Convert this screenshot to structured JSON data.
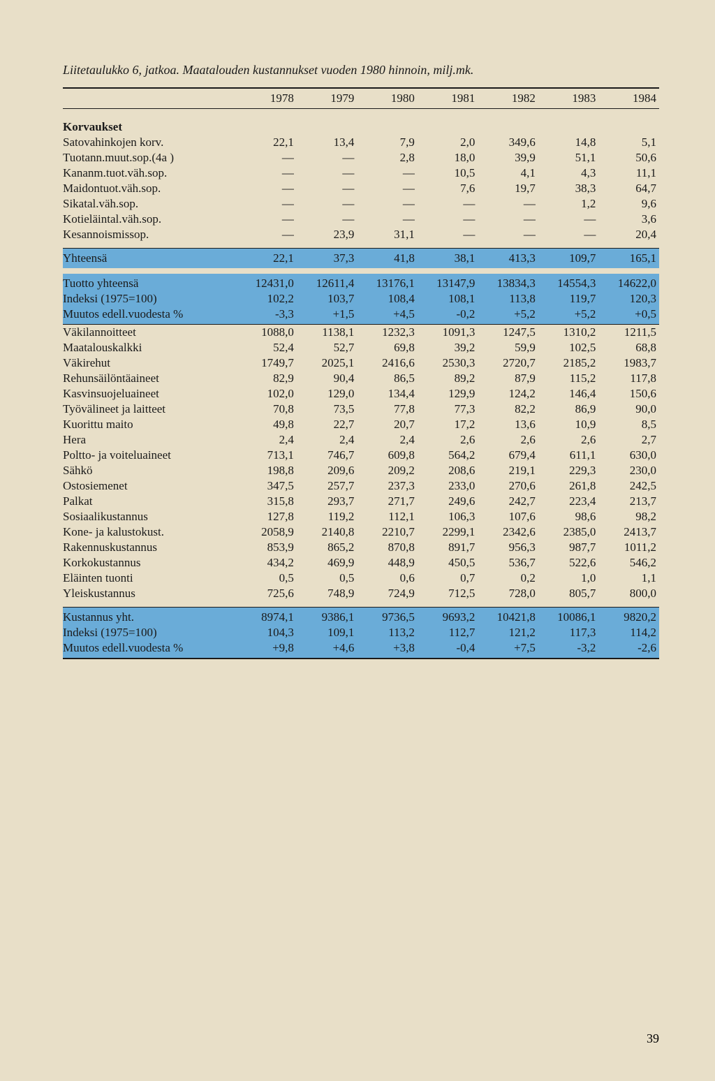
{
  "title": "Liitetaulukko 6, jatkoa. Maatalouden kustannukset vuoden 1980 hinnoin, milj.mk.",
  "years": [
    "1978",
    "1979",
    "1980",
    "1981",
    "1982",
    "1983",
    "1984"
  ],
  "sections": [
    {
      "heading": "Korvaukset",
      "rows": [
        {
          "label": "Satovahinkojen korv.",
          "v": [
            "22,1",
            "13,4",
            "7,9",
            "2,0",
            "349,6",
            "14,8",
            "5,1"
          ]
        },
        {
          "label": "Tuotann.muut.sop.(4a )",
          "v": [
            "—",
            "—",
            "2,8",
            "18,0",
            "39,9",
            "51,1",
            "50,6"
          ]
        },
        {
          "label": "Kananm.tuot.väh.sop.",
          "v": [
            "—",
            "—",
            "—",
            "10,5",
            "4,1",
            "4,3",
            "11,1"
          ]
        },
        {
          "label": "Maidontuot.väh.sop.",
          "v": [
            "—",
            "—",
            "—",
            "7,6",
            "19,7",
            "38,3",
            "64,7"
          ]
        },
        {
          "label": "Sikatal.väh.sop.",
          "v": [
            "—",
            "—",
            "—",
            "—",
            "—",
            "1,2",
            "9,6"
          ]
        },
        {
          "label": "Kotieläintal.väh.sop.",
          "v": [
            "—",
            "—",
            "—",
            "—",
            "—",
            "—",
            "3,6"
          ]
        },
        {
          "label": "Kesannoismissop.",
          "v": [
            "—",
            "23,9",
            "31,1",
            "—",
            "—",
            "—",
            "20,4"
          ]
        }
      ]
    }
  ],
  "hl1": [
    {
      "label": "Yhteensä",
      "v": [
        "22,1",
        "37,3",
        "41,8",
        "38,1",
        "413,3",
        "109,7",
        "165,1"
      ]
    }
  ],
  "hl2": [
    {
      "label": "Tuotto yhteensä",
      "v": [
        "12431,0",
        "12611,4",
        "13176,1",
        "13147,9",
        "13834,3",
        "14554,3",
        "14622,0"
      ]
    },
    {
      "label": "Indeksi (1975=100)",
      "v": [
        "102,2",
        "103,7",
        "108,4",
        "108,1",
        "113,8",
        "119,7",
        "120,3"
      ]
    },
    {
      "label": "Muutos edell.vuodesta %",
      "v": [
        "-3,3",
        "+1,5",
        "+4,5",
        "-0,2",
        "+5,2",
        "+5,2",
        "+0,5"
      ]
    }
  ],
  "costs": [
    {
      "label": "Väkilannoitteet",
      "v": [
        "1088,0",
        "1138,1",
        "1232,3",
        "1091,3",
        "1247,5",
        "1310,2",
        "1211,5"
      ]
    },
    {
      "label": "Maatalouskalkki",
      "v": [
        "52,4",
        "52,7",
        "69,8",
        "39,2",
        "59,9",
        "102,5",
        "68,8"
      ]
    },
    {
      "label": "Väkirehut",
      "v": [
        "1749,7",
        "2025,1",
        "2416,6",
        "2530,3",
        "2720,7",
        "2185,2",
        "1983,7"
      ]
    },
    {
      "label": "Rehunsäilöntäaineet",
      "v": [
        "82,9",
        "90,4",
        "86,5",
        "89,2",
        "87,9",
        "115,2",
        "117,8"
      ]
    },
    {
      "label": "Kasvinsuojeluaineet",
      "v": [
        "102,0",
        "129,0",
        "134,4",
        "129,9",
        "124,2",
        "146,4",
        "150,6"
      ]
    },
    {
      "label": "Työvälineet ja laitteet",
      "v": [
        "70,8",
        "73,5",
        "77,8",
        "77,3",
        "82,2",
        "86,9",
        "90,0"
      ]
    },
    {
      "label": "Kuorittu maito",
      "v": [
        "49,8",
        "22,7",
        "20,7",
        "17,2",
        "13,6",
        "10,9",
        "8,5"
      ]
    },
    {
      "label": "Hera",
      "v": [
        "2,4",
        "2,4",
        "2,4",
        "2,6",
        "2,6",
        "2,6",
        "2,7"
      ]
    },
    {
      "label": "Poltto- ja voiteluaineet",
      "v": [
        "713,1",
        "746,7",
        "609,8",
        "564,2",
        "679,4",
        "611,1",
        "630,0"
      ]
    },
    {
      "label": "Sähkö",
      "v": [
        "198,8",
        "209,6",
        "209,2",
        "208,6",
        "219,1",
        "229,3",
        "230,0"
      ]
    },
    {
      "label": "Ostosiemenet",
      "v": [
        "347,5",
        "257,7",
        "237,3",
        "233,0",
        "270,6",
        "261,8",
        "242,5"
      ]
    },
    {
      "label": "Palkat",
      "v": [
        "315,8",
        "293,7",
        "271,7",
        "249,6",
        "242,7",
        "223,4",
        "213,7"
      ]
    },
    {
      "label": "Sosiaalikustannus",
      "v": [
        "127,8",
        "119,2",
        "112,1",
        "106,3",
        "107,6",
        "98,6",
        "98,2"
      ]
    },
    {
      "label": "Kone- ja kalustokust.",
      "v": [
        "2058,9",
        "2140,8",
        "2210,7",
        "2299,1",
        "2342,6",
        "2385,0",
        "2413,7"
      ]
    },
    {
      "label": "Rakennuskustannus",
      "v": [
        "853,9",
        "865,2",
        "870,8",
        "891,7",
        "956,3",
        "987,7",
        "1011,2"
      ]
    },
    {
      "label": "Korkokustannus",
      "v": [
        "434,2",
        "469,9",
        "448,9",
        "450,5",
        "536,7",
        "522,6",
        "546,2"
      ]
    },
    {
      "label": "Eläinten tuonti",
      "v": [
        "0,5",
        "0,5",
        "0,6",
        "0,7",
        "0,2",
        "1,0",
        "1,1"
      ]
    },
    {
      "label": "Yleiskustannus",
      "v": [
        "725,6",
        "748,9",
        "724,9",
        "712,5",
        "728,0",
        "805,7",
        "800,0"
      ]
    }
  ],
  "hl3": [
    {
      "label": "Kustannus yht.",
      "v": [
        "8974,1",
        "9386,1",
        "9736,5",
        "9693,2",
        "10421,8",
        "10086,1",
        "9820,2"
      ]
    },
    {
      "label": "Indeksi (1975=100)",
      "v": [
        "104,3",
        "109,1",
        "113,2",
        "112,7",
        "121,2",
        "117,3",
        "114,2"
      ]
    },
    {
      "label": "Muutos edell.vuodesta %",
      "v": [
        "+9,8",
        "+4,6",
        "+3,8",
        "-0,4",
        "+7,5",
        "-3,2",
        "-2,6"
      ]
    }
  ],
  "pageNumber": "39",
  "style": {
    "bg": "#e8dfc8",
    "highlight": "#6aacd8",
    "text": "#1a1a1a",
    "font_body": 17,
    "font_title": 18
  }
}
